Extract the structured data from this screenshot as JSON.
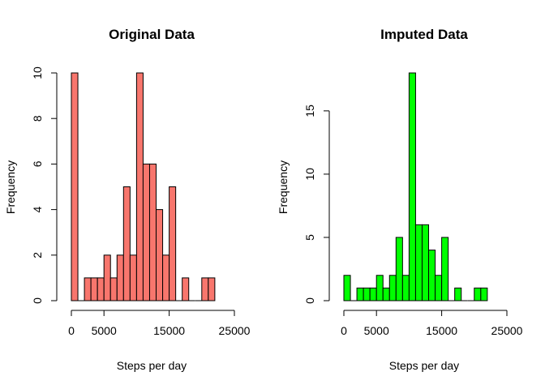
{
  "chart_data": [
    {
      "type": "bar",
      "title": "Original Data",
      "xlabel": "Steps per day",
      "ylabel": "Frequency",
      "bar_color": "#F8766D",
      "bin_width": 1000,
      "bin_starts": [
        0,
        1000,
        2000,
        3000,
        4000,
        5000,
        6000,
        7000,
        8000,
        9000,
        10000,
        11000,
        12000,
        13000,
        14000,
        15000,
        16000,
        17000,
        18000,
        19000,
        20000,
        21000
      ],
      "values": [
        10,
        0,
        1,
        1,
        1,
        2,
        1,
        2,
        5,
        2,
        10,
        6,
        6,
        4,
        2,
        5,
        0,
        1,
        0,
        0,
        1,
        1
      ],
      "xlim": [
        0,
        25000
      ],
      "ylim": [
        0,
        10
      ],
      "x_ticks": [
        0,
        5000,
        15000,
        25000
      ],
      "x_tick_labels": [
        "0",
        "5000",
        "15000",
        "25000"
      ],
      "y_ticks": [
        0,
        2,
        4,
        6,
        8,
        10
      ],
      "y_tick_labels": [
        "0",
        "2",
        "4",
        "6",
        "8",
        "10"
      ]
    },
    {
      "type": "bar",
      "title": "Imputed Data",
      "xlabel": "Steps per day",
      "ylabel": "Frequency",
      "bar_color": "#00FF00",
      "bin_width": 1000,
      "bin_starts": [
        0,
        1000,
        2000,
        3000,
        4000,
        5000,
        6000,
        7000,
        8000,
        9000,
        10000,
        11000,
        12000,
        13000,
        14000,
        15000,
        16000,
        17000,
        18000,
        19000,
        20000,
        21000
      ],
      "values": [
        2,
        0,
        1,
        1,
        1,
        2,
        1,
        2,
        5,
        2,
        18,
        6,
        6,
        4,
        2,
        5,
        0,
        1,
        0,
        0,
        1,
        1
      ],
      "xlim": [
        0,
        25000
      ],
      "ylim": [
        0,
        18
      ],
      "x_ticks": [
        0,
        5000,
        15000,
        25000
      ],
      "x_tick_labels": [
        "0",
        "5000",
        "15000",
        "25000"
      ],
      "y_ticks": [
        0,
        5,
        10,
        15
      ],
      "y_tick_labels": [
        "0",
        "5",
        "10",
        "15"
      ]
    }
  ]
}
